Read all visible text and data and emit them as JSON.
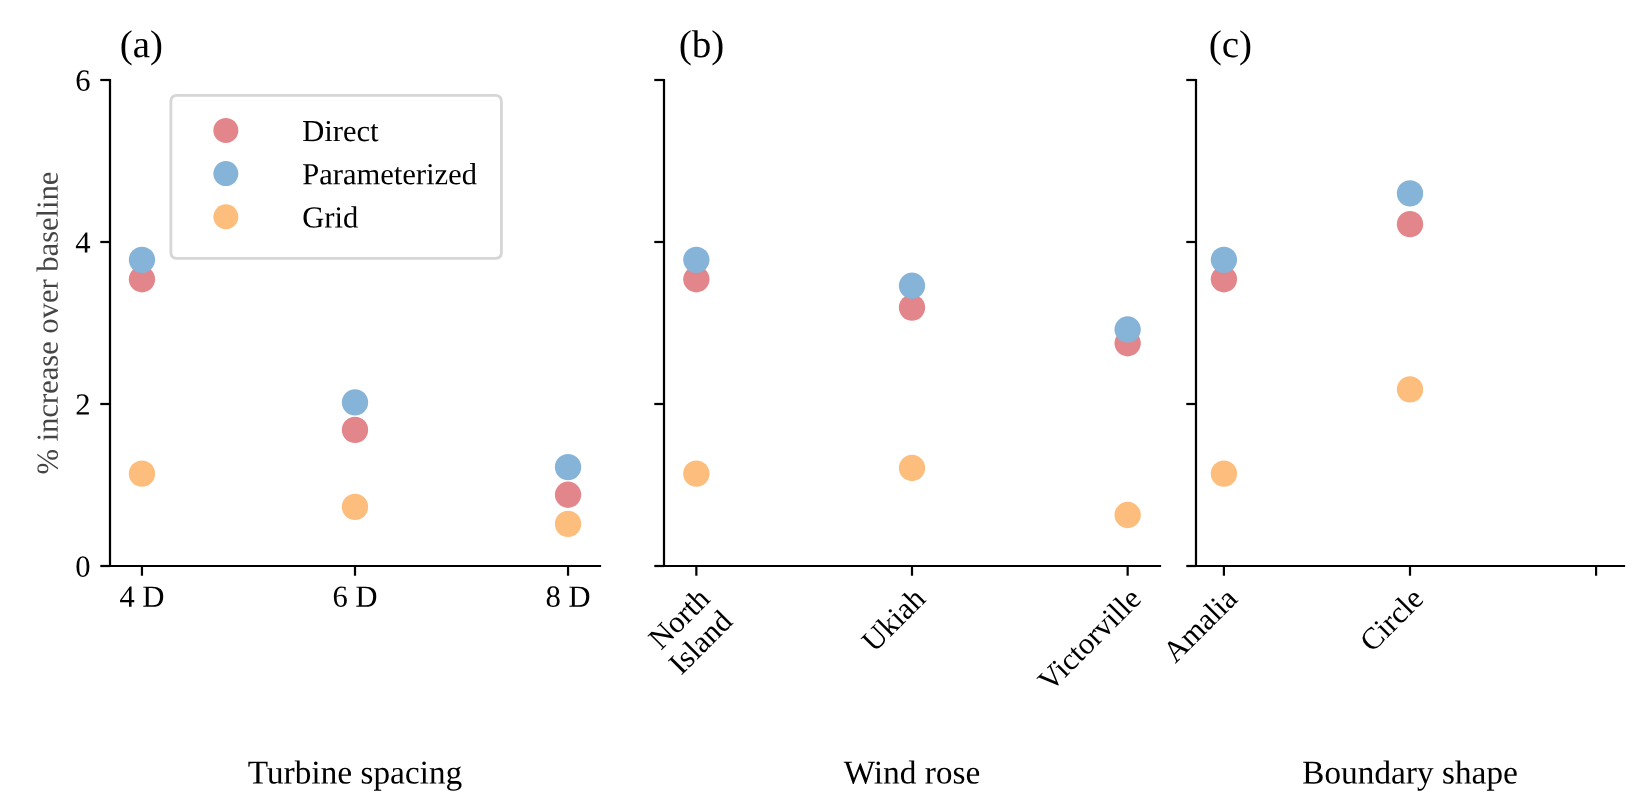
{
  "chart_data": [
    {
      "type": "scatter",
      "title": "(a)",
      "xlabel": "Turbine spacing",
      "ylabel": "% increase over baseline",
      "categories": [
        "4 D",
        "6 D",
        "8 D"
      ],
      "ylim": [
        0,
        6
      ],
      "yticks": [
        0,
        2,
        4,
        6
      ],
      "marker": "circle",
      "legend": "top right",
      "grid": false,
      "series": [
        {
          "name": "Direct",
          "color": "#e3868b",
          "values": [
            3.54,
            1.68,
            0.88
          ]
        },
        {
          "name": "Parameterized",
          "color": "#86b3d8",
          "values": [
            3.78,
            2.02,
            1.22
          ]
        },
        {
          "name": "Grid",
          "color": "#fdbd7c",
          "values": [
            1.14,
            0.73,
            0.52
          ]
        }
      ]
    },
    {
      "type": "scatter",
      "title": "(b)",
      "xlabel": "Wind rose",
      "categories": [
        "North\nIsland",
        "Ukiah",
        "Victorville"
      ],
      "ylim": [
        0,
        6
      ],
      "yticks": [
        0,
        2,
        4,
        6
      ],
      "tick_labels": "x",
      "marker": "circle",
      "grid": false,
      "series": [
        {
          "color": "#e3868b",
          "values": [
            3.54,
            3.19,
            2.75
          ]
        },
        {
          "color": "#86b3d8",
          "values": [
            3.78,
            3.46,
            2.92
          ]
        },
        {
          "color": "#fdbd7c",
          "values": [
            1.14,
            1.21,
            0.63
          ]
        }
      ]
    },
    {
      "type": "scatter",
      "title": "(c)",
      "xlabel": "Boundary shape",
      "categories": [
        "Amalia",
        "Circle",
        null
      ],
      "ylim": [
        0,
        6
      ],
      "yticks": [
        0,
        2,
        4,
        6
      ],
      "tick_labels": "x",
      "marker": "circle",
      "grid": false,
      "series": [
        {
          "color": "#e3868b",
          "values": [
            3.54,
            4.22,
            null
          ]
        },
        {
          "color": "#86b3d8",
          "values": [
            3.78,
            4.6,
            null
          ]
        },
        {
          "color": "#fdbd7c",
          "values": [
            1.14,
            2.18,
            null
          ]
        }
      ]
    }
  ]
}
